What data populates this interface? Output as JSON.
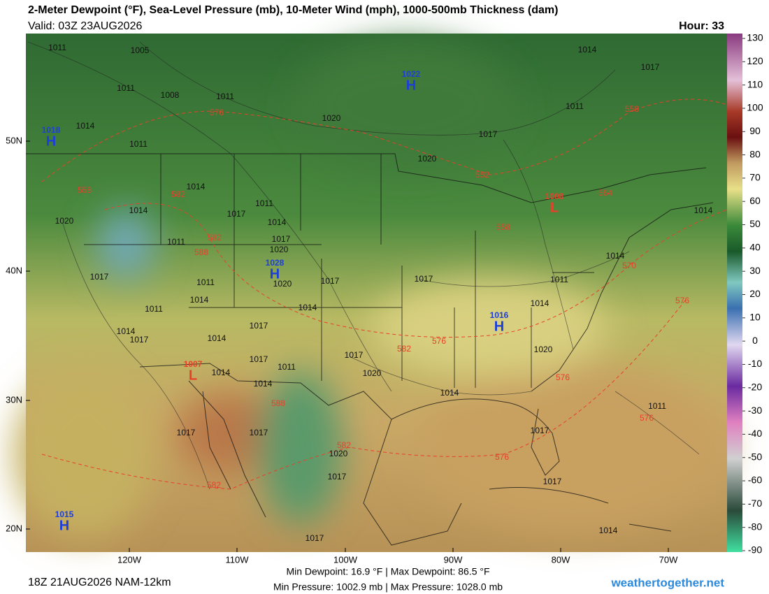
{
  "header": {
    "title": "2-Meter Dewpoint (°F), Sea-Level Pressure (mb), 10-Meter Wind (mph), 1000-500mb Thickness (dam)",
    "valid": "Valid: 03Z 23AUG2026",
    "hour": "Hour: 33"
  },
  "colorbar": {
    "ticks": [
      130,
      120,
      110,
      100,
      90,
      80,
      70,
      60,
      50,
      40,
      30,
      20,
      10,
      0,
      -10,
      -20,
      -30,
      -40,
      -50,
      -60,
      -70,
      -80,
      -90
    ]
  },
  "lat_labels": [
    "50N",
    "40N",
    "30N",
    "20N"
  ],
  "lon_labels": [
    "120W",
    "110W",
    "100W",
    "90W",
    "80W",
    "70W"
  ],
  "pressure_centers": [
    {
      "symbol": "H",
      "value": 1022
    },
    {
      "symbol": "H",
      "value": 1018
    },
    {
      "symbol": "H",
      "value": 1028
    },
    {
      "symbol": "H",
      "value": 1016
    },
    {
      "symbol": "L",
      "value": 1008
    },
    {
      "symbol": "L",
      "value": 1007
    },
    {
      "symbol": "H",
      "value": 1015
    }
  ],
  "isobar_labels": [
    1011,
    1005,
    1011,
    1008,
    1011,
    1020,
    1014,
    1017,
    1011,
    1017,
    1020,
    1014,
    1011,
    1014,
    1014,
    1020,
    1017,
    1011,
    1014,
    1017,
    1020,
    1011,
    1017,
    1011,
    1014,
    1011,
    1020,
    1017,
    1017,
    1011,
    1014,
    1014,
    1014,
    1017,
    1014,
    1014,
    1017,
    1014,
    1017,
    1020,
    1017,
    1011,
    1014,
    1014,
    1014,
    1020,
    1011,
    1017,
    1017,
    1020,
    1017,
    1017,
    1017,
    1017,
    1014
  ],
  "thickness_labels": [
    576,
    558,
    552,
    564,
    558,
    582,
    582,
    588,
    558,
    570,
    576,
    582,
    576,
    576,
    588,
    582,
    576,
    576,
    582
  ],
  "footer": {
    "run": "18Z 21AUG2026 NAM-12km",
    "dewpoint": "Min Dewpoint:  16.9 °F | Max Dewpoint:  86.5 °F",
    "pressure": "Min Pressure: 1002.9 mb | Max Pressure: 1028.0 mb",
    "site": "weathertogether.net"
  }
}
